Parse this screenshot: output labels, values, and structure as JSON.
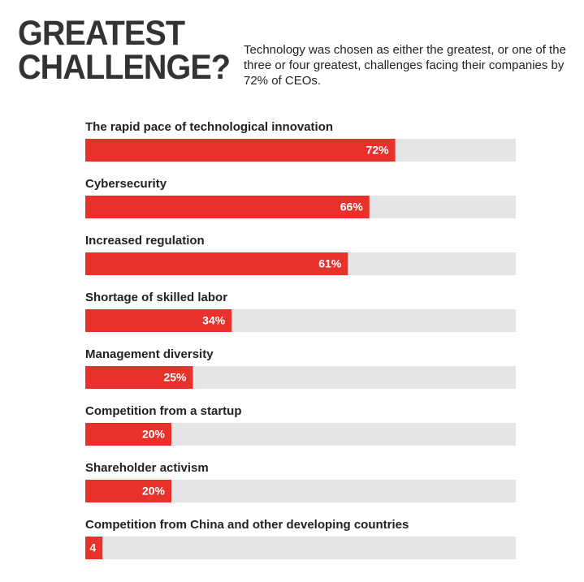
{
  "chart_data": {
    "type": "bar",
    "orientation": "horizontal",
    "title": "GREATEST CHALLENGE?",
    "subtitle": "Technology was chosen as either the greatest, or one of the three or four greatest, challenges facing their companies by 72% of CEOs.",
    "categories": [
      "The rapid pace of technological innovation",
      "Cybersecurity",
      "Increased regulation",
      "Shortage of skilled labor",
      "Management diversity",
      "Competition from a startup",
      "Shareholder activism",
      "Competition from China and other developing countries"
    ],
    "values": [
      72,
      66,
      61,
      34,
      25,
      20,
      20,
      4
    ],
    "value_labels": [
      "72%",
      "66%",
      "61%",
      "34%",
      "25%",
      "20%",
      "20%",
      "4"
    ],
    "color": "#e8312a",
    "track_color": "#e5e5e7",
    "xlim": [
      0,
      100
    ]
  }
}
